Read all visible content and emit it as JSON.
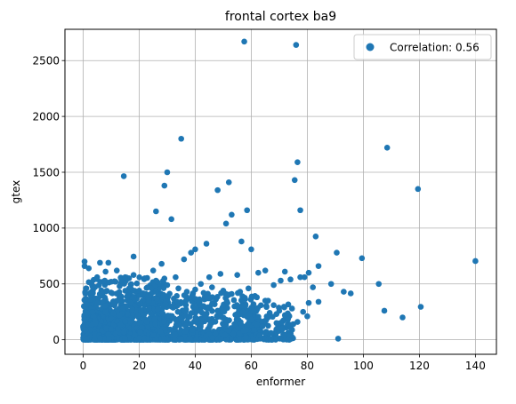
{
  "chart_data": {
    "type": "scatter",
    "title": "frontal cortex ba9",
    "xlabel": "enformer",
    "ylabel": "gtex",
    "xlim": [
      -6.5,
      147.5
    ],
    "ylim": [
      -130,
      2780
    ],
    "xticks": [
      0,
      20,
      40,
      60,
      80,
      100,
      120,
      140
    ],
    "yticks": [
      0,
      500,
      1000,
      1500,
      2000,
      2500
    ],
    "grid": true,
    "legend": {
      "placement": "top-right",
      "entries": [
        "Correlation: 0.56"
      ]
    },
    "colors": {
      "points": "#1f77b4"
    },
    "series": [
      {
        "name": "Correlation: 0.56",
        "points": [
          [
            57.5,
            2670
          ],
          [
            76,
            2640
          ],
          [
            35,
            1800
          ],
          [
            108.5,
            1720
          ],
          [
            76.5,
            1590
          ],
          [
            14.5,
            1465
          ],
          [
            30,
            1500
          ],
          [
            75.5,
            1430
          ],
          [
            52,
            1410
          ],
          [
            29,
            1380
          ],
          [
            48,
            1340
          ],
          [
            119.5,
            1350
          ],
          [
            77.5,
            1160
          ],
          [
            58.5,
            1160
          ],
          [
            26,
            1150
          ],
          [
            53,
            1120
          ],
          [
            31.5,
            1080
          ],
          [
            51,
            1040
          ],
          [
            83,
            925
          ],
          [
            56.5,
            880
          ],
          [
            40,
            810
          ],
          [
            60,
            810
          ],
          [
            84,
            660
          ],
          [
            90.5,
            780
          ],
          [
            36,
            720
          ],
          [
            44,
            860
          ],
          [
            38.5,
            780
          ],
          [
            18,
            745
          ],
          [
            99.5,
            730
          ],
          [
            140,
            705
          ],
          [
            0.5,
            700
          ],
          [
            0.5,
            660
          ],
          [
            9,
            690
          ],
          [
            105.5,
            500
          ],
          [
            93,
            430
          ],
          [
            95.5,
            415
          ],
          [
            107.5,
            260
          ],
          [
            114,
            200
          ],
          [
            120.5,
            295
          ],
          [
            91,
            10
          ],
          [
            84,
            340
          ],
          [
            80.5,
            330
          ],
          [
            78.5,
            250
          ],
          [
            76.5,
            160
          ],
          [
            75,
            140
          ],
          [
            80,
            210
          ],
          [
            80.5,
            600
          ],
          [
            77.5,
            560
          ],
          [
            72,
            610
          ],
          [
            79,
            560
          ],
          [
            74,
            540
          ],
          [
            70.5,
            530
          ],
          [
            68,
            490
          ],
          [
            65,
            620
          ],
          [
            62.5,
            600
          ],
          [
            88.5,
            500
          ],
          [
            82,
            470
          ],
          [
            55,
            580
          ],
          [
            49,
            590
          ],
          [
            45,
            560
          ],
          [
            42,
            500
          ],
          [
            33,
            560
          ],
          [
            28,
            680
          ],
          [
            25,
            620
          ],
          [
            22,
            550
          ],
          [
            18,
            580
          ],
          [
            15,
            560
          ],
          [
            12,
            620
          ],
          [
            8,
            610
          ],
          [
            5,
            560
          ],
          [
            3,
            500
          ],
          [
            1,
            460
          ],
          [
            2,
            640
          ],
          [
            6,
            690
          ],
          [
            10,
            520
          ],
          [
            13,
            480
          ],
          [
            17,
            460
          ],
          [
            20,
            440
          ],
          [
            23,
            470
          ],
          [
            26,
            430
          ],
          [
            30,
            490
          ],
          [
            34,
            460
          ],
          [
            37,
            430
          ],
          [
            40,
            450
          ],
          [
            43,
            420
          ],
          [
            46,
            470
          ],
          [
            50,
            440
          ],
          [
            53,
            410
          ],
          [
            56,
            430
          ],
          [
            59,
            460
          ],
          [
            62,
            380
          ],
          [
            65,
            350
          ],
          [
            68,
            310
          ],
          [
            70,
            260
          ],
          [
            72,
            220
          ],
          [
            66,
            200
          ],
          [
            69,
            150
          ],
          [
            73,
            180
          ],
          [
            64,
            120
          ],
          [
            61,
            90
          ],
          [
            67,
            60
          ],
          [
            71,
            100
          ],
          [
            63,
            40
          ],
          [
            58,
            20
          ],
          [
            66,
            350
          ],
          [
            55,
            300
          ],
          [
            57,
            250
          ],
          [
            60,
            180
          ],
          [
            54,
            140
          ],
          [
            52,
            80
          ],
          [
            50,
            200
          ],
          [
            48,
            260
          ],
          [
            46,
            320
          ],
          [
            44,
            380
          ],
          [
            42,
            140
          ]
        ],
        "dense_clusters": [
          {
            "x_range": [
              0,
              62
            ],
            "y_range": [
              0,
              420
            ],
            "count": 900
          },
          {
            "x_range": [
              0,
              30
            ],
            "y_range": [
              0,
              560
            ],
            "count": 450
          },
          {
            "x_range": [
              0,
              15
            ],
            "y_range": [
              0,
              250
            ],
            "count": 400
          },
          {
            "x_range": [
              55,
              75
            ],
            "y_range": [
              0,
              320
            ],
            "count": 150
          }
        ]
      }
    ]
  }
}
